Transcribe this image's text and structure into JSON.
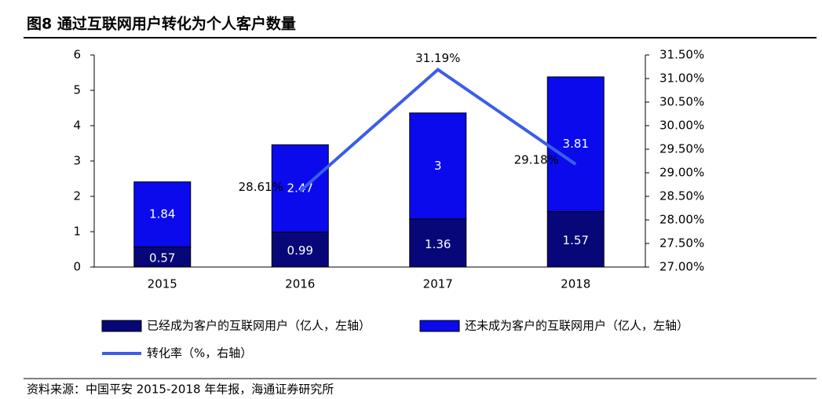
{
  "chart_data": {
    "type": "bar",
    "title": "图8 通过互联网用户转化为个人客户数量",
    "categories": [
      "2015",
      "2016",
      "2017",
      "2018"
    ],
    "series": [
      {
        "name": "已经成为客户的互联网用户（亿人，左轴）",
        "color": "#07077a",
        "values": [
          0.57,
          0.99,
          1.36,
          1.57
        ]
      },
      {
        "name": "还未成为客户的互联网用户（亿人，左轴）",
        "color": "#0a0aec",
        "values": [
          1.84,
          2.47,
          3,
          3.81
        ]
      },
      {
        "name": "转化率（%，右轴）",
        "color": "#3b5ee8",
        "type": "line",
        "axis": "y2",
        "values": [
          null,
          28.61,
          31.19,
          29.18
        ],
        "value_labels": [
          null,
          "28.61%",
          "31.19%",
          "29.18%"
        ]
      }
    ],
    "stacked": true,
    "ylim": [
      0,
      6
    ],
    "yticks": [
      0,
      1,
      2,
      3,
      4,
      5,
      6
    ],
    "y2lim": [
      27,
      31.5
    ],
    "y2ticks": [
      {
        "value": 27,
        "label": "27.00%"
      },
      {
        "value": 27.5,
        "label": "27.50%"
      },
      {
        "value": 28,
        "label": "28.00%"
      },
      {
        "value": 28.5,
        "label": "28.50%"
      },
      {
        "value": 29,
        "label": "29.00%"
      },
      {
        "value": 29.5,
        "label": "29.50%"
      },
      {
        "value": 30,
        "label": "30.00%"
      },
      {
        "value": 30.5,
        "label": "30.50%"
      },
      {
        "value": 31,
        "label": "31.00%"
      },
      {
        "value": 31.5,
        "label": "31.50%"
      }
    ],
    "source": "资料来源：中国平安 2015-2018 年年报，海通证券研究所"
  }
}
